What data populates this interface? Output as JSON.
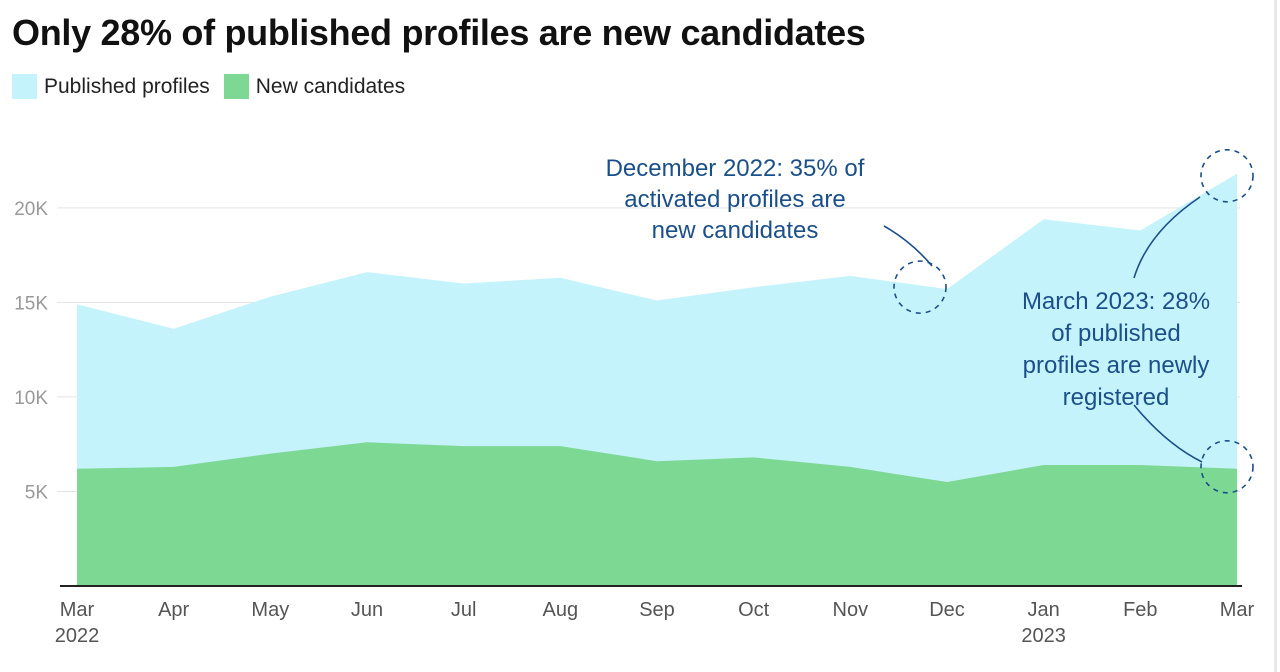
{
  "chart_data": {
    "type": "area",
    "title": "Only 28% of published profiles are new candidates",
    "categories": [
      "Mar",
      "Apr",
      "May",
      "Jun",
      "Jul",
      "Aug",
      "Sep",
      "Oct",
      "Nov",
      "Dec",
      "Jan",
      "Feb",
      "Mar"
    ],
    "year_labels": [
      "2022",
      "",
      "",
      "",
      "",
      "",
      "",
      "",
      "",
      "",
      "2023",
      "",
      ""
    ],
    "series": [
      {
        "name": "Published profiles",
        "color": "#c5f3fc",
        "values": [
          14900,
          13600,
          15300,
          16600,
          16000,
          16300,
          15100,
          15800,
          16400,
          15700,
          19400,
          18800,
          21800
        ]
      },
      {
        "name": "New candidates",
        "color": "#7dd894",
        "values": [
          6200,
          6300,
          7000,
          7600,
          7400,
          7400,
          6600,
          6800,
          6300,
          5500,
          6400,
          6400,
          6200
        ]
      }
    ],
    "ylim": [
      0,
      22000
    ],
    "yticks": [
      5000,
      10000,
      15000,
      20000
    ],
    "ytick_labels": [
      "5K",
      "10K",
      "15K",
      "20K"
    ],
    "xlabel": "",
    "ylabel": "",
    "grid": true,
    "legend": "top-left",
    "annotations": [
      {
        "lines": [
          "December 2022: 35% of",
          "activated profiles are",
          "new candidates"
        ],
        "targets": [
          {
            "category": 9,
            "value": 15700
          }
        ]
      },
      {
        "lines": [
          "March 2023: 28%",
          "of published",
          "profiles are newly",
          "registered"
        ],
        "targets": [
          {
            "category": 12,
            "value": 21800
          },
          {
            "category": 12,
            "value": 6200
          }
        ]
      }
    ]
  }
}
